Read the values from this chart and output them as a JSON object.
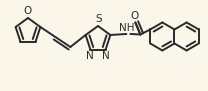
{
  "bg_color": "#faf6ea",
  "bond_color": "#2a2a2a",
  "bond_width": 1.4,
  "dbo": 0.018,
  "text_color": "#2a2a2a",
  "fs": 7.5,
  "figsize": [
    2.08,
    0.91
  ],
  "dpi": 100,
  "xlim": [
    0,
    208
  ],
  "ylim": [
    0,
    91
  ]
}
